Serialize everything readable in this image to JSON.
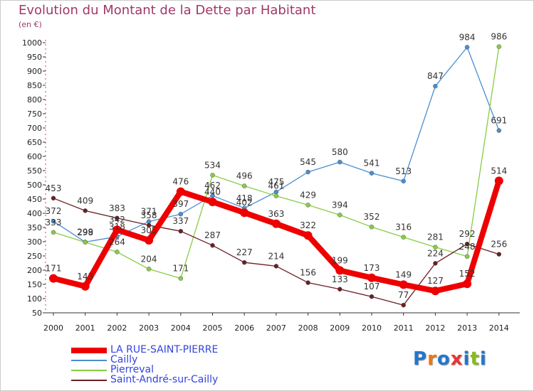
{
  "header": {
    "title": "Evolution du Montant de la Dette par Habitant",
    "subtitle": "(en €)"
  },
  "logo": {
    "text": "Proxiti",
    "letter_colors": [
      "#2277cc",
      "#ee7711",
      "#2277cc",
      "#ee3333",
      "#2277cc",
      "#88bb22",
      "#2277cc"
    ]
  },
  "chart_data": {
    "type": "line",
    "title": "Evolution du Montant de la Dette par Habitant",
    "subtitle": "(en €)",
    "xlabel": "",
    "ylabel": "",
    "x": [
      "2000",
      "2001",
      "2002",
      "2003",
      "2004",
      "2005",
      "2006",
      "2007",
      "2008",
      "2009",
      "2010",
      "2011",
      "2012",
      "2013",
      "2014"
    ],
    "y_ticks": [
      "50",
      "100",
      "150",
      "200",
      "250",
      "300",
      "350",
      "400",
      "450",
      "500",
      "550",
      "600",
      "650",
      "700",
      "750",
      "800",
      "850",
      "900",
      "950",
      "1000"
    ],
    "ylim": [
      50,
      1000
    ],
    "grid": false,
    "legend_position": "bottom-left",
    "series": [
      {
        "name": "Cailly",
        "color": "#4a8ed0",
        "values": [
          372,
          299,
          318,
          371,
          397,
          462,
          418,
          475,
          545,
          580,
          541,
          513,
          847,
          984,
          691
        ],
        "labels": [
          "372",
          "299",
          "318",
          "371",
          "397",
          "462",
          "418",
          "475",
          "545",
          "580",
          "541",
          "513",
          "847",
          "984",
          "691"
        ]
      },
      {
        "name": "Pierreval",
        "color": "#88cc44",
        "values": [
          333,
          298,
          264,
          204,
          171,
          534,
          496,
          461,
          429,
          394,
          352,
          316,
          281,
          248,
          986
        ],
        "labels": [
          "333",
          "298",
          "264",
          "204",
          "171",
          "534",
          "496",
          "461",
          "429",
          "394",
          "352",
          "316",
          "281",
          "248",
          "986"
        ]
      },
      {
        "name": "Saint-André-sur-Cailly",
        "color": "#6b1e24",
        "values": [
          453,
          409,
          383,
          358,
          337,
          287,
          227,
          214,
          156,
          133,
          107,
          77,
          224,
          292,
          256
        ],
        "labels": [
          "453",
          "409",
          "383",
          "358",
          "337",
          "287",
          "227",
          "214",
          "156",
          "133",
          "107",
          "77",
          "224",
          "292",
          "256"
        ]
      },
      {
        "name": "LA RUE-SAINT-PIERRE",
        "color": "#ee0000",
        "values": [
          171,
          143,
          342,
          305,
          476,
          440,
          402,
          363,
          322,
          199,
          173,
          149,
          127,
          152,
          514
        ],
        "labels": [
          "171",
          "143",
          "342",
          "305",
          "476",
          "440",
          "402",
          "363",
          "322",
          "199",
          "173",
          "149",
          "127",
          "152",
          "514"
        ]
      }
    ],
    "legend_order": [
      "LA RUE-SAINT-PIERRE",
      "Cailly",
      "Pierreval",
      "Saint-André-sur-Cailly"
    ]
  }
}
